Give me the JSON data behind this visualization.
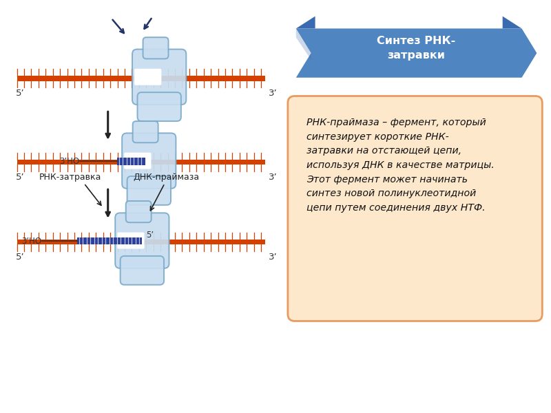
{
  "bg_color": "#ffffff",
  "title_text": "Синтез РНК-\nзатравки",
  "title_bg": "#4f85c0",
  "title_bg_dark": "#3a6aaf",
  "title_text_color": "#ffffff",
  "info_text": "РНК-праймаза – фермент, который\nсинтезирует короткие РНК-\nзатравки на отстающей цепи,\nиспользуя ДНК в качестве матрицы.\nЭтот фермент может начинать\nсинтез новой полинуклеотидной\nцепи путем соединения двух НТФ.",
  "info_box_bg": "#fde8cc",
  "info_box_border": "#e89a60",
  "dna_color": "#d44000",
  "tick_color": "#d44000",
  "enzyme_color_light": "#c8ddf0",
  "enzyme_color_mid": "#9bbcd8",
  "enzyme_outline": "#7aaac8",
  "label_5prime": "5’",
  "label_3prime": "3’",
  "label_rna": "РНК-затравка",
  "label_dna_primer": "ДНК-праймаза",
  "label_3ho": "3’НО",
  "label_5inner": "5’",
  "arrow_color": "#222222",
  "rna_color": "#1a2e7a",
  "rna_bg": "#2a3e9a",
  "nucleotide_color": "#ffffff"
}
